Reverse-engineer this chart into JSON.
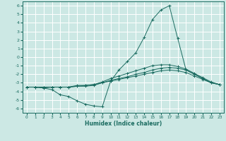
{
  "xlabel": "Humidex (Indice chaleur)",
  "bg_color": "#cce8e4",
  "grid_color": "#ffffff",
  "line_color": "#1a6b60",
  "xlim": [
    -0.5,
    23.5
  ],
  "ylim": [
    -6.5,
    6.5
  ],
  "xticks": [
    0,
    1,
    2,
    3,
    4,
    5,
    6,
    7,
    8,
    9,
    10,
    11,
    12,
    13,
    14,
    15,
    16,
    17,
    18,
    19,
    20,
    21,
    22,
    23
  ],
  "yticks": [
    -6,
    -5,
    -4,
    -3,
    -2,
    -1,
    0,
    1,
    2,
    3,
    4,
    5,
    6
  ],
  "x": [
    0,
    1,
    2,
    3,
    4,
    5,
    6,
    7,
    8,
    9,
    10,
    11,
    12,
    13,
    14,
    15,
    16,
    17,
    18,
    19,
    20,
    21,
    22,
    23
  ],
  "line1": [
    -3.5,
    -3.5,
    -3.6,
    -3.8,
    -4.4,
    -4.6,
    -5.1,
    -5.5,
    -5.7,
    -5.8,
    -2.8,
    -1.5,
    -0.5,
    0.5,
    2.3,
    4.4,
    5.5,
    6.0,
    2.2,
    -1.5,
    -2.0,
    -2.5,
    -3.0,
    -3.2
  ],
  "line2": [
    -3.5,
    -3.5,
    -3.6,
    -3.5,
    -3.5,
    -3.5,
    -3.4,
    -3.4,
    -3.3,
    -3.0,
    -2.7,
    -2.5,
    -2.3,
    -2.0,
    -1.8,
    -1.5,
    -1.3,
    -1.2,
    -1.3,
    -1.5,
    -2.0,
    -2.5,
    -3.0,
    -3.2
  ],
  "line3": [
    -3.5,
    -3.5,
    -3.5,
    -3.5,
    -3.5,
    -3.5,
    -3.4,
    -3.3,
    -3.2,
    -2.9,
    -2.5,
    -2.2,
    -1.9,
    -1.6,
    -1.3,
    -1.0,
    -0.9,
    -0.9,
    -1.1,
    -1.4,
    -1.9,
    -2.4,
    -2.9,
    -3.2
  ],
  "line4": [
    -3.5,
    -3.5,
    -3.5,
    -3.5,
    -3.5,
    -3.5,
    -3.3,
    -3.3,
    -3.2,
    -3.0,
    -2.8,
    -2.6,
    -2.4,
    -2.2,
    -2.0,
    -1.8,
    -1.6,
    -1.5,
    -1.6,
    -1.8,
    -2.2,
    -2.6,
    -3.0,
    -3.2
  ]
}
